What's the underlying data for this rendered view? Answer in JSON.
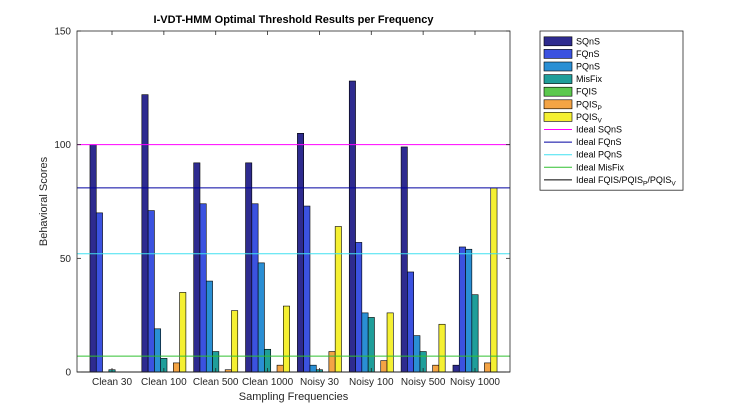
{
  "chart_data": {
    "type": "bar",
    "title": "I-VDT-HMM Optimal Threshold Results per Frequency",
    "xlabel": "Sampling Frequencies",
    "ylabel": "Behavioral Scores",
    "ylim": [
      0,
      150
    ],
    "yticks": [
      0,
      50,
      100,
      150
    ],
    "grid": false,
    "legend_position": "outside-right",
    "categories": [
      "Clean 30",
      "Clean 100",
      "Clean 500",
      "Clean 1000",
      "Noisy 30",
      "Noisy 100",
      "Noisy 500",
      "Noisy 1000"
    ],
    "series": [
      {
        "name": "SQnS",
        "color": "#2e2b8f",
        "values": [
          100,
          122,
          92,
          92,
          105,
          128,
          99,
          3
        ]
      },
      {
        "name": "FQnS",
        "color": "#3b52e0",
        "values": [
          70,
          71,
          74,
          74,
          73,
          57,
          44,
          55
        ]
      },
      {
        "name": "PQnS",
        "color": "#2a8fd4",
        "values": [
          0,
          19,
          40,
          48,
          3,
          26,
          16,
          54
        ]
      },
      {
        "name": "MisFix",
        "color": "#1f9e9a",
        "values": [
          1,
          6,
          9,
          10,
          1,
          24,
          9,
          34
        ]
      },
      {
        "name": "FQIS",
        "color": "#5cc84e",
        "values": [
          0,
          0,
          0,
          0,
          0,
          0,
          0,
          0
        ]
      },
      {
        "name": "PQIS",
        "sub": "P",
        "color": "#f4a445",
        "values": [
          0,
          4,
          1,
          3,
          9,
          5,
          3,
          4
        ]
      },
      {
        "name": "PQIS",
        "sub": "V",
        "color": "#f5f032",
        "values": [
          0,
          35,
          27,
          29,
          64,
          26,
          21,
          81
        ]
      }
    ],
    "reference_lines": [
      {
        "name": "Ideal SQnS",
        "color": "#ff00ff",
        "value": 100
      },
      {
        "name": "Ideal FQnS",
        "color": "#0000a0",
        "value": 81
      },
      {
        "name": "Ideal PQnS",
        "color": "#40e0f0",
        "value": 52
      },
      {
        "name": "Ideal MisFix",
        "color": "#30c030",
        "value": 7
      },
      {
        "name": "Ideal FQIS/PQIS",
        "sub1": "P",
        "mid": "/PQIS",
        "sub2": "V",
        "color": "#000000",
        "value": 0
      }
    ]
  }
}
